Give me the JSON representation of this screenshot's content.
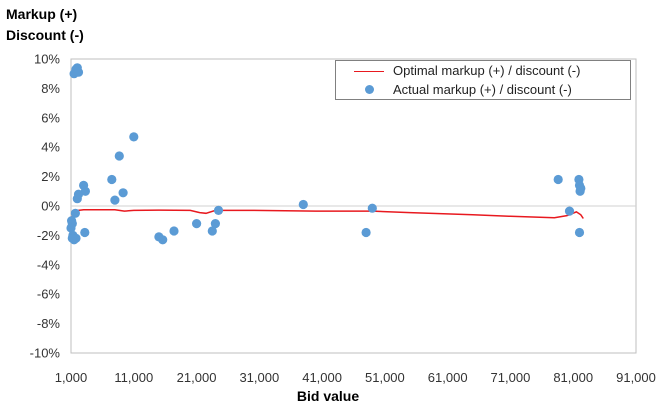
{
  "chart_data": {
    "type": "scatter",
    "ylabel_lines": [
      "Markup (+)",
      "Discount (-)"
    ],
    "xlabel": "Bid value",
    "xlim": [
      1000,
      91000
    ],
    "ylim": [
      -10,
      10
    ],
    "x_ticks": [
      "1,000",
      "11,000",
      "21,000",
      "31,000",
      "41,000",
      "51,000",
      "61,000",
      "71,000",
      "81,000",
      "91,000"
    ],
    "y_ticks": [
      "10%",
      "8%",
      "6%",
      "4%",
      "2%",
      "0%",
      "-2%",
      "-4%",
      "-6%",
      "-8%",
      "-10%"
    ],
    "zero_reference_line": true,
    "legend_position": "top-right",
    "series": [
      {
        "name": "Optimal markup (+) / discount (-)",
        "kind": "line",
        "color": "#e8191f",
        "points": [
          [
            1000,
            -0.9
          ],
          [
            1300,
            -0.6
          ],
          [
            1700,
            -0.4
          ],
          [
            2200,
            -0.3
          ],
          [
            3000,
            -0.25
          ],
          [
            5000,
            -0.25
          ],
          [
            8000,
            -0.25
          ],
          [
            9500,
            -0.35
          ],
          [
            11000,
            -0.3
          ],
          [
            15000,
            -0.28
          ],
          [
            20000,
            -0.3
          ],
          [
            21500,
            -0.45
          ],
          [
            22500,
            -0.5
          ],
          [
            24000,
            -0.3
          ],
          [
            30000,
            -0.3
          ],
          [
            40000,
            -0.35
          ],
          [
            49000,
            -0.35
          ],
          [
            55000,
            -0.45
          ],
          [
            65000,
            -0.6
          ],
          [
            71000,
            -0.7
          ],
          [
            78000,
            -0.8
          ],
          [
            80000,
            -0.65
          ],
          [
            81500,
            -0.4
          ],
          [
            82200,
            -0.6
          ],
          [
            82600,
            -0.85
          ]
        ]
      },
      {
        "name": "Actual markup (+) / discount (-)",
        "kind": "markers",
        "color": "#5b9bd5",
        "points": [
          [
            1500,
            9.0
          ],
          [
            1800,
            9.3
          ],
          [
            2000,
            9.4
          ],
          [
            2200,
            9.1
          ],
          [
            1300,
            -2.0
          ],
          [
            1500,
            -2.3
          ],
          [
            1800,
            -2.2
          ],
          [
            1200,
            -1.2
          ],
          [
            1100,
            -1.0
          ],
          [
            1700,
            -0.5
          ],
          [
            2000,
            0.5
          ],
          [
            2200,
            0.8
          ],
          [
            1000,
            -1.5
          ],
          [
            1200,
            -2.2
          ],
          [
            3000,
            1.4
          ],
          [
            3300,
            1.0
          ],
          [
            3200,
            -1.8
          ],
          [
            7500,
            1.8
          ],
          [
            8000,
            0.4
          ],
          [
            8700,
            3.4
          ],
          [
            9300,
            0.9
          ],
          [
            11000,
            4.7
          ],
          [
            15000,
            -2.1
          ],
          [
            15600,
            -2.3
          ],
          [
            17400,
            -1.7
          ],
          [
            21000,
            -1.2
          ],
          [
            23500,
            -1.7
          ],
          [
            24000,
            -1.2
          ],
          [
            24500,
            -0.3
          ],
          [
            38000,
            0.1
          ],
          [
            48000,
            -1.8
          ],
          [
            49000,
            -0.15
          ],
          [
            78600,
            1.8
          ],
          [
            80400,
            -0.35
          ],
          [
            81900,
            1.8
          ],
          [
            82000,
            1.4
          ],
          [
            82100,
            1.0
          ],
          [
            82200,
            1.2
          ],
          [
            82000,
            -1.8
          ]
        ]
      }
    ]
  }
}
